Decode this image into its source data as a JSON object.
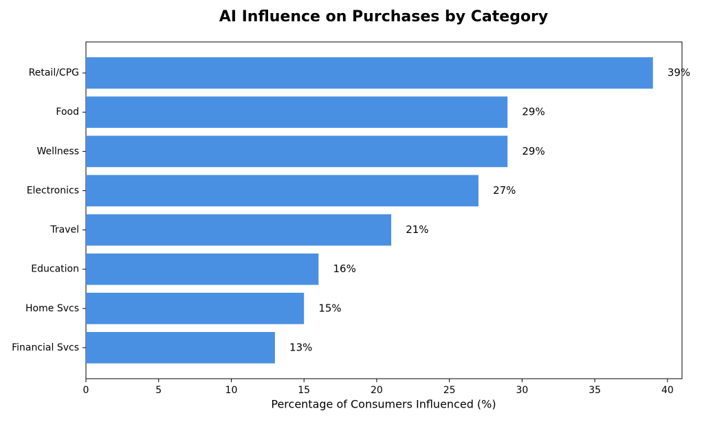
{
  "chart_data": {
    "type": "barh",
    "title": "AI Influence on Purchases by Category",
    "x_label": "Percentage of Consumers Influenced (%)",
    "categories": [
      "Retail/CPG",
      "Food",
      "Wellness",
      "Electronics",
      "Travel",
      "Education",
      "Home Svcs",
      "Financial Svcs"
    ],
    "values": [
      39,
      29,
      29,
      27,
      21,
      16,
      15,
      13
    ],
    "value_labels": [
      "39%",
      "29%",
      "29%",
      "27%",
      "21%",
      "16%",
      "15%",
      "13%"
    ],
    "color": "#4a90e2",
    "xlim": [
      0,
      41
    ],
    "xticks": [
      0,
      5,
      10,
      15,
      20,
      25,
      30,
      35,
      40
    ],
    "grid": false
  }
}
